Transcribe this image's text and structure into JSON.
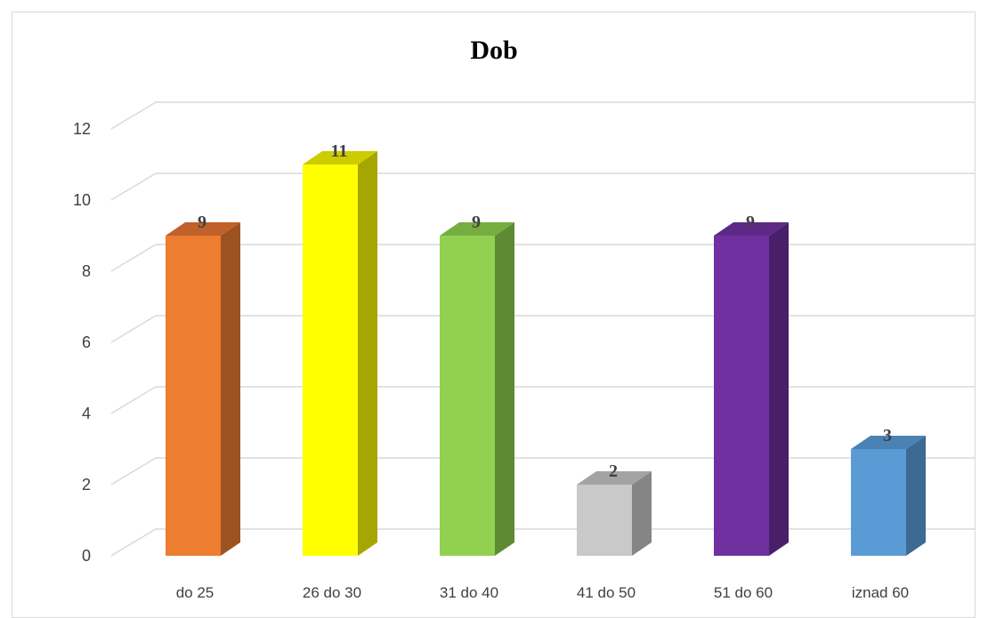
{
  "chart_data": {
    "type": "bar",
    "style": "3d-column",
    "title": "Dob",
    "xlabel": "",
    "ylabel": "",
    "categories": [
      "do 25",
      "26 do 30",
      "31 do 40",
      "41 do 50",
      "51 do 60",
      "iznad 60"
    ],
    "values": [
      9,
      11,
      9,
      2,
      9,
      3
    ],
    "data_labels": [
      "9",
      "11",
      "9",
      "2",
      "9",
      "3"
    ],
    "ylim": [
      0,
      12
    ],
    "yticks": [
      "0",
      "2",
      "4",
      "6",
      "8",
      "10",
      "12"
    ],
    "grid": true,
    "legend": "none",
    "colors": [
      {
        "front": "#ed7d31",
        "side": "#9c5221",
        "top": "#c0602a"
      },
      {
        "front": "#ffff00",
        "side": "#a6a600",
        "top": "#cccc00"
      },
      {
        "front": "#92d050",
        "side": "#5e8a33",
        "top": "#76ad41"
      },
      {
        "front": "#c9c9c9",
        "side": "#858585",
        "top": "#a3a3a3"
      },
      {
        "front": "#7030a0",
        "side": "#4a1f6a",
        "top": "#5d2886"
      },
      {
        "front": "#5b9bd5",
        "side": "#3d6a93",
        "top": "#4a82b4"
      }
    ],
    "gridline_color": "#d9d9d9"
  }
}
